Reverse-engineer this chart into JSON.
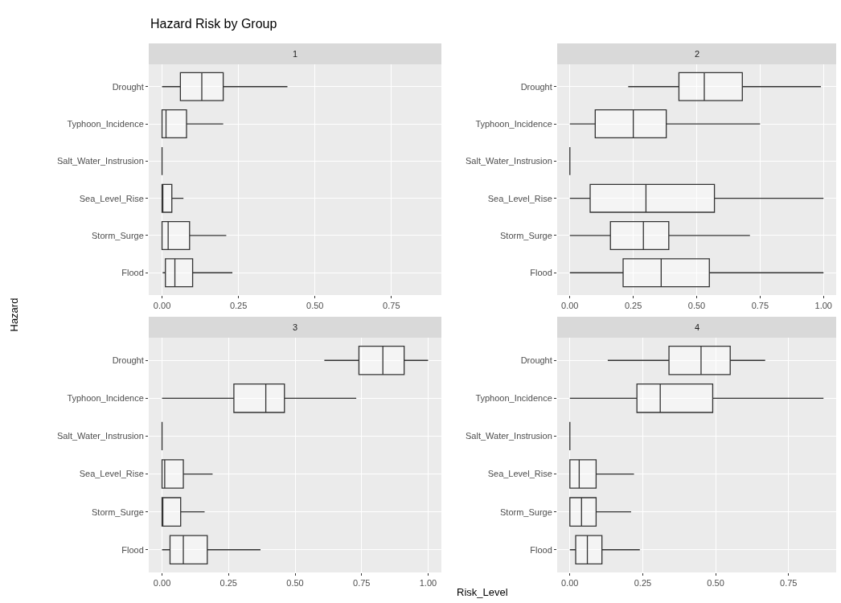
{
  "chart_data": [
    {
      "type": "box",
      "orientation": "horizontal",
      "title": "Hazard Risk by Group",
      "subtitle": "1",
      "ylabel": "Hazard",
      "grid": true,
      "categories": [
        "Drought",
        "Typhoon_Incidence",
        "Salt_Water_Instrusion",
        "Sea_Level_Rise",
        "Storm_Surge",
        "Flood"
      ],
      "boxes": [
        {
          "low": 0,
          "q1": 0.06,
          "median": 0.13,
          "q3": 0.2,
          "high": 0.41
        },
        {
          "low": 0,
          "q1": 0,
          "median": 0.013,
          "q3": 0.08,
          "high": 0.2
        },
        {
          "low": 0,
          "q1": 0,
          "median": 0,
          "q3": 0,
          "high": 0
        },
        {
          "low": 0,
          "q1": 0,
          "median": 0.002,
          "q3": 0.032,
          "high": 0.07
        },
        {
          "low": 0,
          "q1": 0,
          "median": 0.02,
          "q3": 0.09,
          "high": 0.21
        },
        {
          "low": 0.002,
          "q1": 0.011,
          "median": 0.042,
          "q3": 0.1,
          "high": 0.23
        }
      ],
      "xlim": [
        -0.0435,
        0.9135
      ],
      "xticks": [
        {
          "value": 0,
          "label": "0.00"
        },
        {
          "value": 0.25,
          "label": "0.25"
        },
        {
          "value": 0.5,
          "label": "0.50"
        },
        {
          "value": 0.75,
          "label": "0.75"
        }
      ]
    },
    {
      "type": "box",
      "orientation": "horizontal",
      "subtitle": "2",
      "grid": true,
      "categories": [
        "Drought",
        "Typhoon_Incidence",
        "Salt_Water_Instrusion",
        "Sea_Level_Rise",
        "Storm_Surge",
        "Flood"
      ],
      "boxes": [
        {
          "low": 0.23,
          "q1": 0.43,
          "median": 0.53,
          "q3": 0.68,
          "high": 0.99
        },
        {
          "low": 0,
          "q1": 0.1,
          "median": 0.25,
          "q3": 0.38,
          "high": 0.75
        },
        {
          "low": 0,
          "q1": 0,
          "median": 0,
          "q3": 0,
          "high": 0
        },
        {
          "low": 0,
          "q1": 0.08,
          "median": 0.3,
          "q3": 0.57,
          "high": 1.0
        },
        {
          "low": 0,
          "q1": 0.16,
          "median": 0.29,
          "q3": 0.39,
          "high": 0.71
        },
        {
          "low": 0,
          "q1": 0.21,
          "median": 0.36,
          "q3": 0.55,
          "high": 1.0
        }
      ],
      "xlim": [
        -0.05,
        1.05
      ],
      "xticks": [
        {
          "value": 0,
          "label": "0.00"
        },
        {
          "value": 0.25,
          "label": "0.25"
        },
        {
          "value": 0.5,
          "label": "0.50"
        },
        {
          "value": 0.75,
          "label": "0.75"
        },
        {
          "value": 1,
          "label": "1.00"
        }
      ]
    },
    {
      "type": "box",
      "orientation": "horizontal",
      "subtitle": "3",
      "grid": true,
      "categories": [
        "Drought",
        "Typhoon_Incidence",
        "Salt_Water_Instrusion",
        "Sea_Level_Rise",
        "Storm_Surge",
        "Flood"
      ],
      "boxes": [
        {
          "low": 0.61,
          "q1": 0.74,
          "median": 0.83,
          "q3": 0.91,
          "high": 1.0
        },
        {
          "low": 0,
          "q1": 0.27,
          "median": 0.39,
          "q3": 0.46,
          "high": 0.73
        },
        {
          "low": 0,
          "q1": 0,
          "median": 0,
          "q3": 0,
          "high": 0
        },
        {
          "low": 0,
          "q1": 0,
          "median": 0.01,
          "q3": 0.08,
          "high": 0.19
        },
        {
          "low": 0,
          "q1": 0,
          "median": 0,
          "q3": 0.07,
          "high": 0.16
        },
        {
          "low": 0,
          "q1": 0.03,
          "median": 0.08,
          "q3": 0.17,
          "high": 0.37
        }
      ],
      "xlim": [
        -0.05,
        1.05
      ],
      "xticks": [
        {
          "value": 0,
          "label": "0.00"
        },
        {
          "value": 0.25,
          "label": "0.25"
        },
        {
          "value": 0.5,
          "label": "0.50"
        },
        {
          "value": 0.75,
          "label": "0.75"
        },
        {
          "value": 1,
          "label": "1.00"
        }
      ]
    },
    {
      "type": "box",
      "orientation": "horizontal",
      "subtitle": "4",
      "xlabel": "Risk_Level",
      "grid": true,
      "categories": [
        "Drought",
        "Typhoon_Incidence",
        "Salt_Water_Instrusion",
        "Sea_Level_Rise",
        "Storm_Surge",
        "Flood"
      ],
      "boxes": [
        {
          "low": 0.13,
          "q1": 0.34,
          "median": 0.45,
          "q3": 0.55,
          "high": 0.67
        },
        {
          "low": 0,
          "q1": 0.23,
          "median": 0.31,
          "q3": 0.49,
          "high": 0.87
        },
        {
          "low": 0,
          "q1": 0,
          "median": 0,
          "q3": 0,
          "high": 0
        },
        {
          "low": 0,
          "q1": 0,
          "median": 0.032,
          "q3": 0.09,
          "high": 0.22
        },
        {
          "low": 0,
          "q1": 0,
          "median": 0.04,
          "q3": 0.09,
          "high": 0.21
        },
        {
          "low": 0,
          "q1": 0.02,
          "median": 0.06,
          "q3": 0.11,
          "high": 0.24
        }
      ],
      "xlim": [
        -0.0435,
        0.9135
      ],
      "xticks": [
        {
          "value": 0,
          "label": "0.00"
        },
        {
          "value": 0.25,
          "label": "0.25"
        },
        {
          "value": 0.5,
          "label": "0.50"
        },
        {
          "value": 0.75,
          "label": "0.75"
        }
      ]
    }
  ]
}
